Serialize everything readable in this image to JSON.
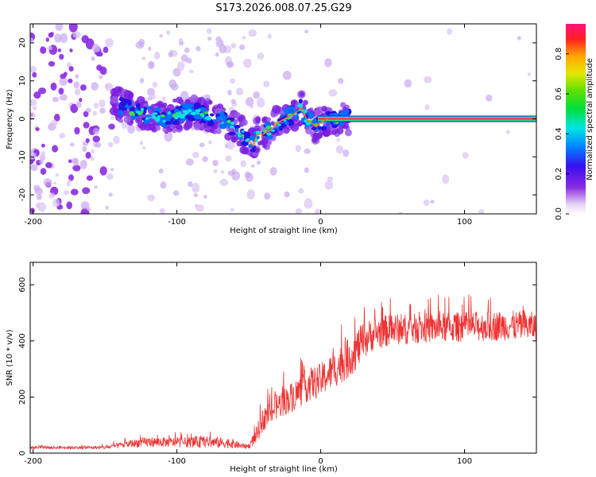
{
  "chart_data": [
    {
      "type": "heatmap",
      "title": "S173.2026.008.07.25.G29",
      "xlabel": "Height of straight line (km)",
      "ylabel": "Frequency (Hz)",
      "xlim": [
        -202,
        150
      ],
      "ylim": [
        -25,
        25
      ],
      "xticks": [
        -200,
        -100,
        0,
        100
      ],
      "yticks": [
        -20,
        -10,
        0,
        10,
        20
      ],
      "colorbar": {
        "label": "Normalized spectral amplitude",
        "range": [
          0,
          0.95
        ],
        "ticks": [
          "0.0",
          "0.2",
          "0.4",
          "0.6",
          "0.8"
        ],
        "tick_values": [
          0.0,
          0.2,
          0.4,
          0.6,
          0.8
        ]
      },
      "ridge": {
        "x": [
          -142,
          -130,
          -120,
          -110,
          -100,
          -90,
          -80,
          -72,
          -65,
          -58,
          -52,
          -47,
          -44,
          -40,
          -35,
          -30,
          -25,
          -20,
          -16,
          -13,
          -10,
          -7,
          -3,
          0,
          5,
          10,
          20,
          40,
          80,
          150
        ],
        "freq": [
          4,
          2,
          1,
          0,
          1,
          2,
          1,
          0,
          -1,
          -3,
          -5,
          -7,
          -4,
          -4,
          -3,
          -1,
          0,
          1,
          2,
          3,
          0,
          -1,
          -2,
          -1,
          0,
          0,
          0,
          0,
          0,
          0
        ]
      }
    },
    {
      "type": "line",
      "xlabel": "Height of straight line (km)",
      "ylabel": "SNR (10 * v/v)",
      "xlim": [
        -202,
        150
      ],
      "ylim": [
        0,
        680
      ],
      "xticks": [
        -200,
        -100,
        0,
        100
      ],
      "yticks": [
        0,
        200,
        400,
        600
      ],
      "color": "#ee3333",
      "envelope": {
        "x": [
          -202,
          -150,
          -130,
          -120,
          -100,
          -80,
          -62,
          -55,
          -50,
          -45,
          -40,
          -30,
          -20,
          -10,
          0,
          10,
          20,
          25,
          30,
          35,
          40,
          50,
          70,
          100,
          130,
          150
        ],
        "base": [
          20,
          20,
          35,
          40,
          38,
          40,
          35,
          25,
          25,
          60,
          120,
          170,
          200,
          240,
          260,
          300,
          340,
          370,
          400,
          420,
          430,
          440,
          445,
          450,
          455,
          450
        ],
        "amp": [
          8,
          10,
          25,
          30,
          28,
          35,
          30,
          15,
          15,
          50,
          70,
          80,
          90,
          100,
          100,
          110,
          120,
          120,
          110,
          100,
          100,
          95,
          90,
          90,
          90,
          90
        ]
      }
    }
  ]
}
